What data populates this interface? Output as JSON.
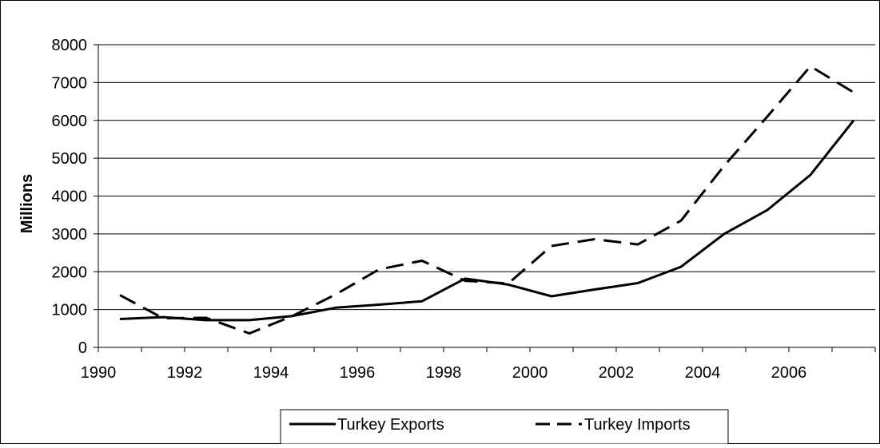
{
  "chart_data": {
    "type": "line",
    "title": "",
    "xlabel": "",
    "ylabel": "Millions",
    "ylim": [
      0,
      8000
    ],
    "yticks": [
      0,
      1000,
      2000,
      3000,
      4000,
      5000,
      6000,
      7000,
      8000
    ],
    "x_categories": [
      1990,
      1991,
      1992,
      1993,
      1994,
      1995,
      1996,
      1997,
      1998,
      1999,
      2000,
      2001,
      2002,
      2003,
      2004,
      2005,
      2006,
      2007
    ],
    "xtick_labels": [
      "1990",
      "1992",
      "1994",
      "1996",
      "1998",
      "2000",
      "2002",
      "2004",
      "2006"
    ],
    "grid": "horizontal",
    "legend_position": "bottom",
    "series": [
      {
        "name": "Turkey Exports",
        "style": "solid",
        "color": "#000000",
        "values": [
          750,
          800,
          720,
          720,
          830,
          1050,
          1130,
          1220,
          1820,
          1660,
          1350,
          1530,
          1700,
          2130,
          3000,
          3630,
          4560,
          6000
        ]
      },
      {
        "name": "Turkey Imports",
        "style": "dashed",
        "color": "#000000",
        "values": [
          1380,
          770,
          780,
          370,
          830,
          1400,
          2060,
          2290,
          1760,
          1690,
          2680,
          2860,
          2720,
          3350,
          4800,
          6100,
          7430,
          6740
        ]
      }
    ]
  }
}
